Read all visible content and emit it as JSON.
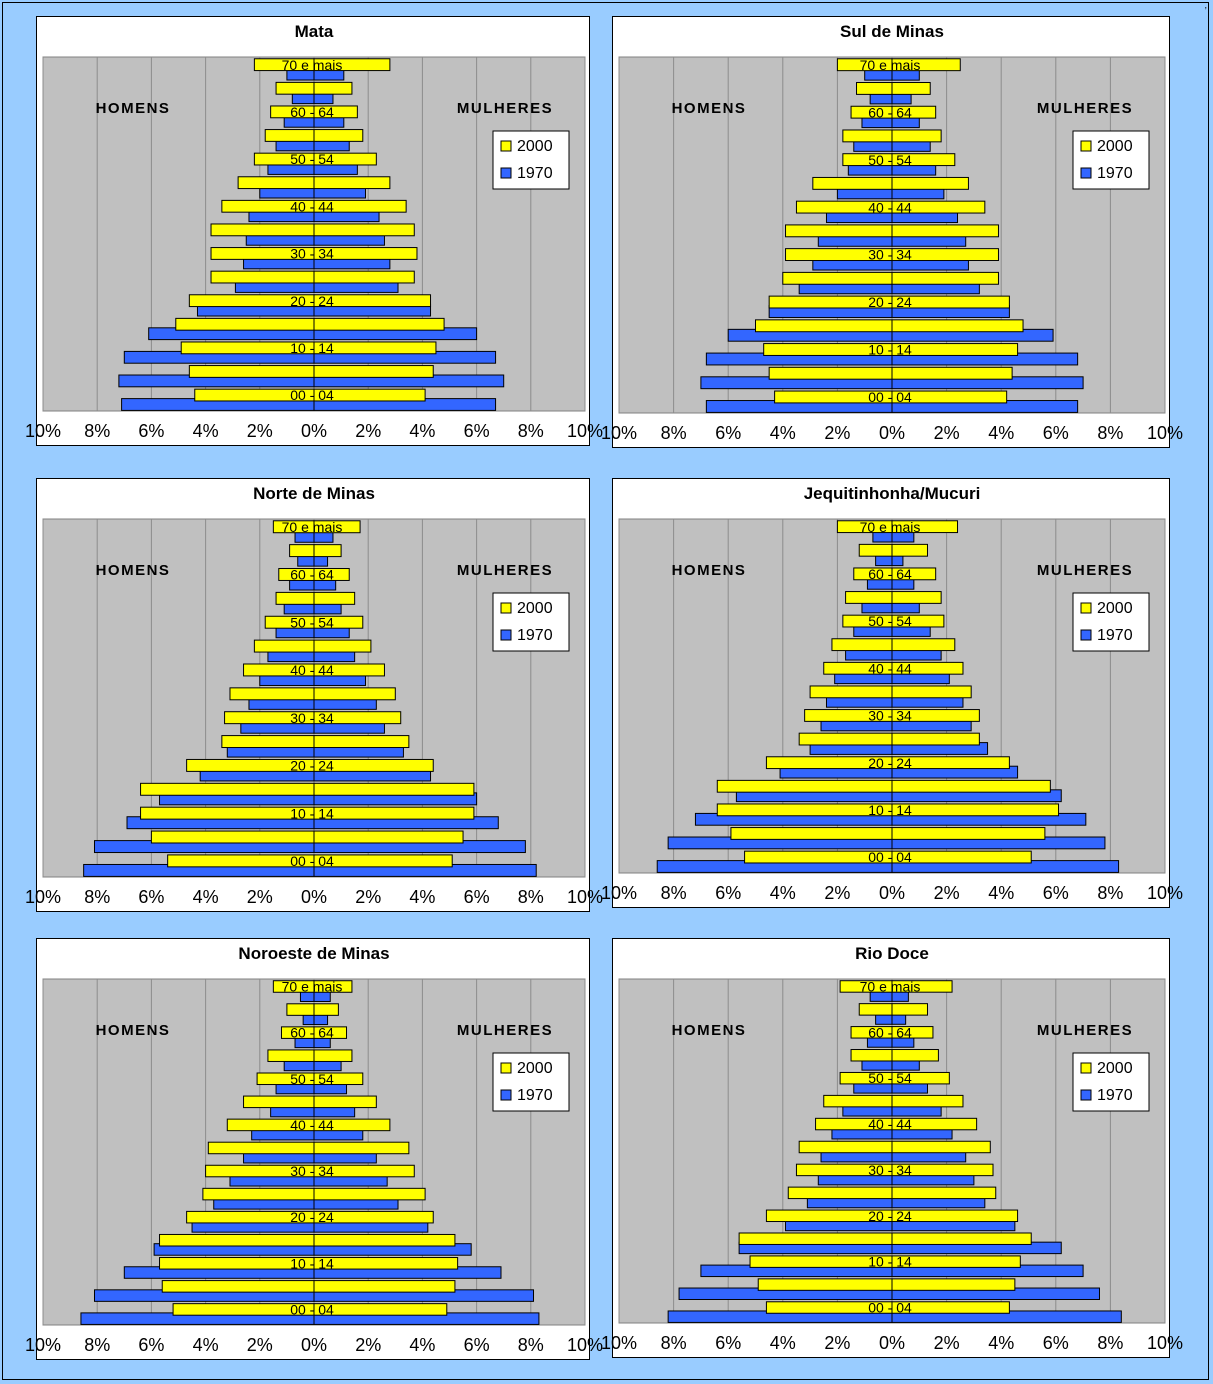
{
  "page": {
    "corner_mark": ","
  },
  "chart_data": [
    {
      "type": "bar",
      "orientation": "horizontal-pyramid",
      "title": "Mata",
      "left_label": "HOMENS",
      "right_label": "MULHERES",
      "legend": [
        "2000",
        "1970"
      ],
      "legend_placement": "right",
      "categories": [
        "00 - 04",
        "",
        "10 - 14",
        "",
        "20 - 24",
        "",
        "30 - 34",
        "",
        "40 - 44",
        "",
        "50 - 54",
        "",
        "60 - 64",
        "",
        "70 e mais"
      ],
      "x_tick_labels": [
        "10%",
        "8%",
        "6%",
        "4%",
        "2%",
        "0%",
        "2%",
        "4%",
        "6%",
        "8%",
        "10%"
      ],
      "xlim": [
        -10,
        10
      ],
      "series": [
        {
          "name": "2000",
          "color": "#ffff00",
          "men": [
            4.4,
            4.6,
            4.9,
            5.1,
            4.6,
            3.8,
            3.8,
            3.8,
            3.4,
            2.8,
            2.2,
            1.8,
            1.6,
            1.4,
            2.2
          ],
          "women": [
            4.1,
            4.4,
            4.5,
            4.8,
            4.3,
            3.7,
            3.8,
            3.7,
            3.4,
            2.8,
            2.3,
            1.8,
            1.6,
            1.4,
            2.8
          ]
        },
        {
          "name": "1970",
          "color": "#3366ff",
          "men": [
            7.1,
            7.2,
            7.0,
            6.1,
            4.3,
            2.9,
            2.6,
            2.5,
            2.4,
            2.0,
            1.7,
            1.4,
            1.1,
            0.8,
            1.0
          ],
          "women": [
            6.7,
            7.0,
            6.7,
            6.0,
            4.3,
            3.1,
            2.8,
            2.6,
            2.4,
            1.9,
            1.6,
            1.3,
            1.1,
            0.7,
            1.1
          ]
        }
      ]
    },
    {
      "type": "bar",
      "orientation": "horizontal-pyramid",
      "title": "Sul de Minas",
      "left_label": "HOMENS",
      "right_label": "MULHERES",
      "legend": [
        "2000",
        "1970"
      ],
      "legend_placement": "right",
      "categories": [
        "00 - 04",
        "",
        "10 - 14",
        "",
        "20 - 24",
        "",
        "30 - 34",
        "",
        "40 - 44",
        "",
        "50 - 54",
        "",
        "60 - 64",
        "",
        "70 e mais"
      ],
      "x_tick_labels": [
        "10%",
        "8%",
        "6%",
        "4%",
        "2%",
        "0%",
        "2%",
        "4%",
        "6%",
        "8%",
        "10%"
      ],
      "xlim": [
        -10,
        10
      ],
      "series": [
        {
          "name": "2000",
          "color": "#ffff00",
          "men": [
            4.3,
            4.5,
            4.7,
            5.0,
            4.5,
            4.0,
            3.9,
            3.9,
            3.5,
            2.9,
            1.8,
            1.8,
            1.5,
            1.3,
            2.0
          ],
          "women": [
            4.2,
            4.4,
            4.6,
            4.8,
            4.3,
            3.9,
            3.9,
            3.9,
            3.4,
            2.8,
            2.3,
            1.8,
            1.6,
            1.4,
            2.5
          ]
        },
        {
          "name": "1970",
          "color": "#3366ff",
          "men": [
            6.8,
            7.0,
            6.8,
            6.0,
            4.5,
            3.4,
            2.9,
            2.7,
            2.4,
            2.0,
            1.6,
            1.4,
            1.1,
            0.8,
            1.0
          ],
          "women": [
            6.8,
            7.0,
            6.8,
            5.9,
            4.3,
            3.2,
            2.8,
            2.7,
            2.4,
            1.9,
            1.6,
            1.4,
            1.0,
            0.7,
            1.0
          ]
        }
      ]
    },
    {
      "type": "bar",
      "orientation": "horizontal-pyramid",
      "title": "Norte de Minas",
      "left_label": "HOMENS",
      "right_label": "MULHERES",
      "legend": [
        "2000",
        "1970"
      ],
      "legend_placement": "right",
      "categories": [
        "00 - 04",
        "",
        "10 - 14",
        "",
        "20 - 24",
        "",
        "30 - 34",
        "",
        "40 - 44",
        "",
        "50 - 54",
        "",
        "60 - 64",
        "",
        "70 e mais"
      ],
      "x_tick_labels": [
        "10%",
        "8%",
        "6%",
        "4%",
        "2%",
        "0%",
        "2%",
        "4%",
        "6%",
        "8%",
        "10%"
      ],
      "xlim": [
        -10,
        10
      ],
      "series": [
        {
          "name": "2000",
          "color": "#ffff00",
          "men": [
            5.4,
            6.0,
            6.4,
            6.4,
            4.7,
            3.4,
            3.3,
            3.1,
            2.6,
            2.2,
            1.8,
            1.4,
            1.3,
            0.9,
            1.5
          ],
          "women": [
            5.1,
            5.5,
            5.9,
            5.9,
            4.4,
            3.5,
            3.2,
            3.0,
            2.6,
            2.1,
            1.8,
            1.5,
            1.3,
            1.0,
            1.7
          ]
        },
        {
          "name": "1970",
          "color": "#3366ff",
          "men": [
            8.5,
            8.1,
            6.9,
            5.7,
            4.2,
            3.2,
            2.7,
            2.4,
            2.0,
            1.7,
            1.4,
            1.1,
            0.9,
            0.6,
            0.7
          ],
          "women": [
            8.2,
            7.8,
            6.8,
            6.0,
            4.3,
            3.3,
            2.6,
            2.3,
            1.9,
            1.5,
            1.3,
            1.0,
            0.8,
            0.5,
            0.7
          ]
        }
      ]
    },
    {
      "type": "bar",
      "orientation": "horizontal-pyramid",
      "title": "Jequitinhonha/Mucuri",
      "left_label": "HOMENS",
      "right_label": "MULHERES",
      "legend": [
        "2000",
        "1970"
      ],
      "legend_placement": "right",
      "categories": [
        "00 - 04",
        "",
        "10 - 14",
        "",
        "20 - 24",
        "",
        "30 - 34",
        "",
        "40 - 44",
        "",
        "50 - 54",
        "",
        "60 - 64",
        "",
        "70 e mais"
      ],
      "x_tick_labels": [
        "10%",
        "8%",
        "6%",
        "4%",
        "2%",
        "0%",
        "2%",
        "4%",
        "6%",
        "8%",
        "10%"
      ],
      "xlim": [
        -10,
        10
      ],
      "series": [
        {
          "name": "2000",
          "color": "#ffff00",
          "men": [
            5.4,
            5.9,
            6.4,
            6.4,
            4.6,
            3.4,
            3.2,
            3.0,
            2.5,
            2.2,
            1.8,
            1.7,
            1.4,
            1.2,
            2.0
          ],
          "women": [
            5.1,
            5.6,
            6.1,
            5.8,
            4.3,
            3.2,
            3.2,
            2.9,
            2.6,
            2.3,
            1.9,
            1.8,
            1.6,
            1.3,
            2.4
          ]
        },
        {
          "name": "1970",
          "color": "#3366ff",
          "men": [
            8.6,
            8.2,
            7.2,
            5.7,
            4.1,
            3.0,
            2.6,
            2.4,
            2.1,
            1.7,
            1.4,
            1.1,
            0.9,
            0.6,
            0.7
          ],
          "women": [
            8.3,
            7.8,
            7.1,
            6.2,
            4.6,
            3.5,
            2.9,
            2.6,
            2.1,
            1.8,
            1.4,
            1.0,
            0.8,
            0.4,
            0.8
          ]
        }
      ]
    },
    {
      "type": "bar",
      "orientation": "horizontal-pyramid",
      "title": "Noroeste de Minas",
      "left_label": "HOMENS",
      "right_label": "MULHERES",
      "legend": [
        "2000",
        "1970"
      ],
      "legend_placement": "right",
      "categories": [
        "00 - 04",
        "",
        "10 - 14",
        "",
        "20 - 24",
        "",
        "30 - 34",
        "",
        "40 - 44",
        "",
        "50 - 54",
        "",
        "60 - 64",
        "",
        "70 e mais"
      ],
      "x_tick_labels": [
        "10%",
        "8%",
        "6%",
        "4%",
        "2%",
        "0%",
        "2%",
        "4%",
        "6%",
        "8%",
        "10%"
      ],
      "xlim": [
        -10,
        10
      ],
      "series": [
        {
          "name": "2000",
          "color": "#ffff00",
          "men": [
            5.2,
            5.6,
            5.7,
            5.7,
            4.7,
            4.1,
            4.0,
            3.9,
            3.2,
            2.6,
            2.1,
            1.7,
            1.2,
            1.0,
            1.5
          ],
          "women": [
            4.9,
            5.2,
            5.3,
            5.2,
            4.4,
            4.1,
            3.7,
            3.5,
            2.8,
            2.3,
            1.8,
            1.4,
            1.2,
            0.9,
            1.4
          ]
        },
        {
          "name": "1970",
          "color": "#3366ff",
          "men": [
            8.6,
            8.1,
            7.0,
            5.9,
            4.5,
            3.7,
            3.1,
            2.6,
            2.3,
            1.6,
            1.4,
            1.1,
            0.7,
            0.4,
            0.5
          ],
          "women": [
            8.3,
            8.1,
            6.9,
            5.8,
            4.2,
            3.1,
            2.7,
            2.3,
            1.8,
            1.5,
            1.2,
            1.0,
            0.6,
            0.5,
            0.6
          ]
        }
      ]
    },
    {
      "type": "bar",
      "orientation": "horizontal-pyramid",
      "title": "Rio Doce",
      "left_label": "HOMENS",
      "right_label": "MULHERES",
      "legend": [
        "2000",
        "1970"
      ],
      "legend_placement": "right",
      "categories": [
        "00 - 04",
        "",
        "10 - 14",
        "",
        "20 - 24",
        "",
        "30 - 34",
        "",
        "40 - 44",
        "",
        "50 - 54",
        "",
        "60 - 64",
        "",
        "70 e mais"
      ],
      "x_tick_labels": [
        "10%",
        "8%",
        "6%",
        "4%",
        "2%",
        "0%",
        "2%",
        "4%",
        "6%",
        "8%",
        "10%"
      ],
      "xlim": [
        -10,
        10
      ],
      "series": [
        {
          "name": "2000",
          "color": "#ffff00",
          "men": [
            4.6,
            4.9,
            5.2,
            5.6,
            4.6,
            3.8,
            3.5,
            3.4,
            2.8,
            2.5,
            1.9,
            1.5,
            1.5,
            1.2,
            1.9
          ],
          "women": [
            4.3,
            4.5,
            4.7,
            5.1,
            4.6,
            3.8,
            3.7,
            3.6,
            3.1,
            2.6,
            2.1,
            1.7,
            1.5,
            1.3,
            2.2
          ]
        },
        {
          "name": "1970",
          "color": "#3366ff",
          "men": [
            8.2,
            7.8,
            7.0,
            5.6,
            3.9,
            3.1,
            2.7,
            2.6,
            2.2,
            1.8,
            1.4,
            1.1,
            0.9,
            0.6,
            0.8
          ],
          "women": [
            8.4,
            7.6,
            7.0,
            6.2,
            4.5,
            3.4,
            3.0,
            2.7,
            2.2,
            1.8,
            1.3,
            1.0,
            0.8,
            0.5,
            0.6
          ]
        }
      ]
    }
  ]
}
